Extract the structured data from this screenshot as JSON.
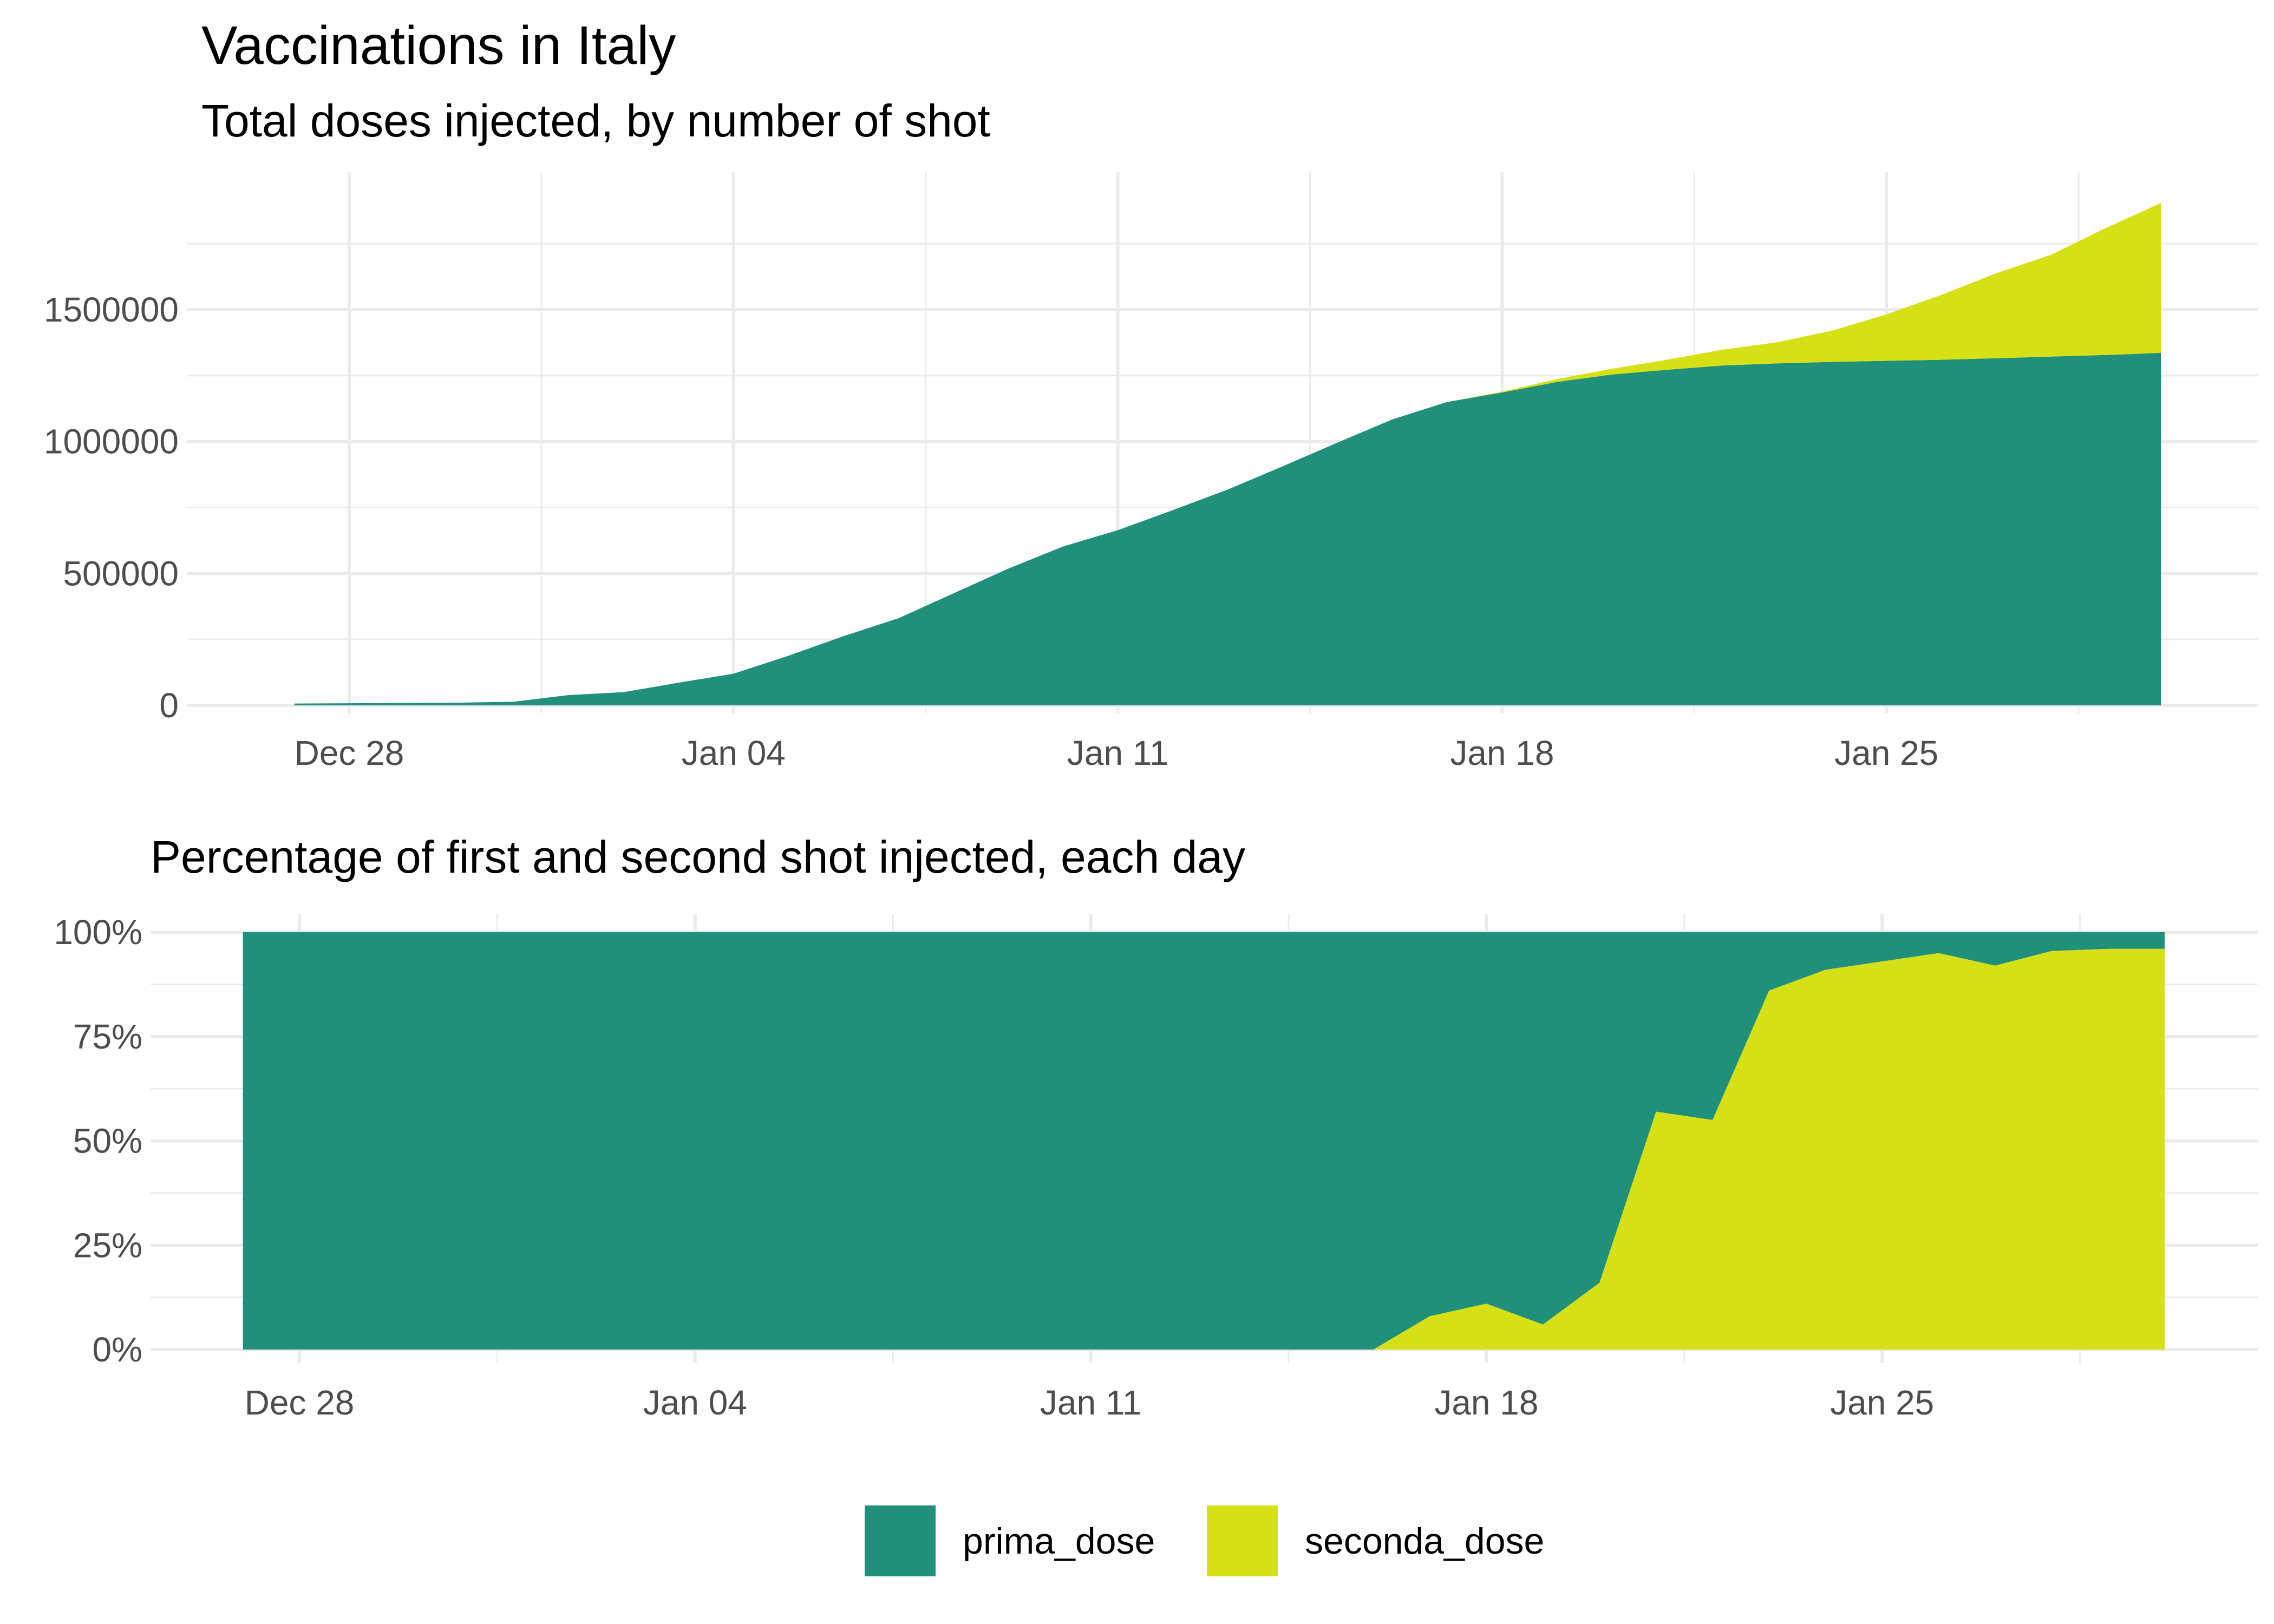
{
  "title": "Vaccinations in Italy",
  "colors": {
    "prima_dose": "#21907a",
    "seconda_dose": "#d5e015"
  },
  "legend": {
    "placement": "bottom",
    "items": [
      "prima_dose",
      "seconda_dose"
    ]
  },
  "chart_data": [
    {
      "type": "area",
      "stacked": true,
      "subtitle": "Total doses injected, by number of shot",
      "xlabel": "",
      "ylabel": "",
      "x_ticks": [
        "Dec 28",
        "Jan 04",
        "Jan 11",
        "Jan 18",
        "Jan 25"
      ],
      "y_ticks": [
        "0",
        "500000",
        "1000000",
        "1500000"
      ],
      "ylim": [
        0,
        2000000
      ],
      "grid": true,
      "x": [
        "2020-12-27",
        "2020-12-28",
        "2020-12-29",
        "2020-12-30",
        "2020-12-31",
        "2021-01-01",
        "2021-01-02",
        "2021-01-03",
        "2021-01-04",
        "2021-01-05",
        "2021-01-06",
        "2021-01-07",
        "2021-01-08",
        "2021-01-09",
        "2021-01-10",
        "2021-01-11",
        "2021-01-12",
        "2021-01-13",
        "2021-01-14",
        "2021-01-15",
        "2021-01-16",
        "2021-01-17",
        "2021-01-18",
        "2021-01-19",
        "2021-01-20",
        "2021-01-21",
        "2021-01-22",
        "2021-01-23",
        "2021-01-24",
        "2021-01-25",
        "2021-01-26",
        "2021-01-27",
        "2021-01-28",
        "2021-01-29",
        "2021-01-30"
      ],
      "series": [
        {
          "name": "prima_dose",
          "values": [
            7000,
            8000,
            9000,
            10000,
            14000,
            39000,
            50000,
            86000,
            120000,
            188000,
            262000,
            330000,
            424000,
            518000,
            602000,
            664000,
            740000,
            818000,
            906000,
            996000,
            1084000,
            1150000,
            1186000,
            1226000,
            1254000,
            1272000,
            1288000,
            1296000,
            1302000,
            1306000,
            1310000,
            1316000,
            1322000,
            1328000,
            1336000
          ]
        },
        {
          "name": "seconda_dose",
          "values": [
            0,
            0,
            0,
            0,
            0,
            0,
            0,
            0,
            0,
            0,
            0,
            0,
            0,
            0,
            0,
            0,
            0,
            0,
            0,
            0,
            0,
            0,
            3000,
            11000,
            22000,
            38000,
            60000,
            80000,
            118000,
            176000,
            246000,
            322000,
            386000,
            482000,
            568000
          ]
        }
      ]
    },
    {
      "type": "area",
      "stacked": true,
      "subtitle": "Percentage of first and second shot injected, each day",
      "xlabel": "",
      "ylabel": "",
      "x_ticks": [
        "Dec 28",
        "Jan 04",
        "Jan 11",
        "Jan 18",
        "Jan 25"
      ],
      "y_ticks": [
        "0%",
        "25%",
        "50%",
        "75%",
        "100%"
      ],
      "ylim": [
        0,
        100
      ],
      "grid": true,
      "x": [
        "2020-12-27",
        "2020-12-28",
        "2020-12-29",
        "2020-12-30",
        "2020-12-31",
        "2021-01-01",
        "2021-01-02",
        "2021-01-03",
        "2021-01-04",
        "2021-01-05",
        "2021-01-06",
        "2021-01-07",
        "2021-01-08",
        "2021-01-09",
        "2021-01-10",
        "2021-01-11",
        "2021-01-12",
        "2021-01-13",
        "2021-01-14",
        "2021-01-15",
        "2021-01-16",
        "2021-01-17",
        "2021-01-18",
        "2021-01-19",
        "2021-01-20",
        "2021-01-21",
        "2021-01-22",
        "2021-01-23",
        "2021-01-24",
        "2021-01-25",
        "2021-01-26",
        "2021-01-27",
        "2021-01-28",
        "2021-01-29",
        "2021-01-30"
      ],
      "series": [
        {
          "name": "seconda_dose",
          "values": [
            0,
            0,
            0,
            0,
            0,
            0,
            0,
            0,
            0,
            0,
            0,
            0,
            0,
            0,
            0,
            0,
            0,
            0,
            0,
            0,
            0,
            8,
            11,
            6,
            16,
            57,
            55,
            86,
            91,
            93,
            95,
            92,
            95.5,
            96,
            96
          ]
        },
        {
          "name": "prima_dose",
          "values": [
            100,
            100,
            100,
            100,
            100,
            100,
            100,
            100,
            100,
            100,
            100,
            100,
            100,
            100,
            100,
            100,
            100,
            100,
            100,
            100,
            100,
            92,
            89,
            94,
            84,
            43,
            45,
            14,
            9,
            7,
            5,
            8,
            4.5,
            4,
            4
          ]
        }
      ]
    }
  ]
}
